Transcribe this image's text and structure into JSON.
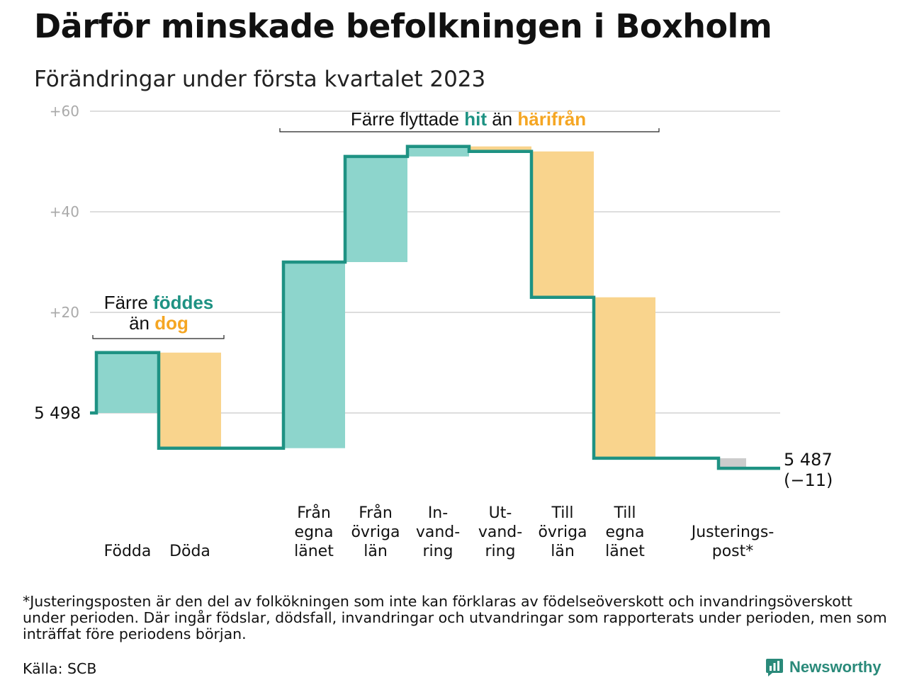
{
  "title": "Därför minskade befolkningen i Boxholm",
  "subtitle": "Förändringar under första kvartalet 2023",
  "colors": {
    "increase": "#8dd5cc",
    "decrease": "#f9d48d",
    "adjustment": "#cccccc",
    "line": "#1e9283",
    "teal_text": "#1e9283",
    "orange_text": "#f5a623",
    "grid": "#dddddd",
    "tick": "#aaaaaa"
  },
  "chart_data": {
    "type": "waterfall",
    "baseline_label": "5 498",
    "start": 5498,
    "end": 5487,
    "end_label": "5 487",
    "end_change_label": "(−11)",
    "y_ticks": [
      "+20",
      "+40",
      "+60"
    ],
    "y_tick_values": [
      20,
      40,
      60
    ],
    "ylim": [
      -13,
      62
    ],
    "grid": true,
    "steps": [
      {
        "label": [
          "Födda"
        ],
        "delta": 12,
        "kind": "increase"
      },
      {
        "label": [
          "Döda"
        ],
        "delta": -19,
        "kind": "decrease"
      },
      {
        "label": [
          "Från",
          "egna",
          "länet"
        ],
        "delta": 37,
        "kind": "increase"
      },
      {
        "label": [
          "Från",
          "övriga",
          "län"
        ],
        "delta": 21,
        "kind": "increase"
      },
      {
        "label": [
          "In-",
          "vand-",
          "ring"
        ],
        "delta": 2,
        "kind": "increase"
      },
      {
        "label": [
          "Ut-",
          "vand-",
          "ring"
        ],
        "delta": -1,
        "kind": "decrease"
      },
      {
        "label": [
          "Till",
          "övriga",
          "län"
        ],
        "delta": -29,
        "kind": "decrease"
      },
      {
        "label": [
          "Till",
          "egna",
          "länet"
        ],
        "delta": -32,
        "kind": "decrease"
      },
      {
        "label": [
          "Justerings-",
          "post*"
        ],
        "delta": -2,
        "kind": "adjustment"
      }
    ],
    "annotations": [
      {
        "id": "births",
        "parts": [
          {
            "text": "Färre ",
            "style": "plain"
          },
          {
            "text": "föddes",
            "style": "teal"
          }
        ],
        "parts2": [
          {
            "text": "än ",
            "style": "plain"
          },
          {
            "text": "dog",
            "style": "orange"
          }
        ]
      },
      {
        "id": "migration",
        "parts": [
          {
            "text": "Färre flyttade ",
            "style": "plain"
          },
          {
            "text": "hit",
            "style": "teal"
          },
          {
            "text": " än ",
            "style": "plain"
          },
          {
            "text": "härifrån",
            "style": "orange"
          }
        ]
      }
    ]
  },
  "footnote": "*Justeringsposten är den del av folkökningen som inte kan förklaras av födelseöverskott och invandringsöverskott under perioden. Där ingår födslar, dödsfall, invandringar och utvandringar som rapporterats under perioden, men som inträffat före periodens början.",
  "source": "Källa: SCB",
  "logo": {
    "text": "Newsworthy",
    "icon": "newsworthy-logo-icon"
  }
}
